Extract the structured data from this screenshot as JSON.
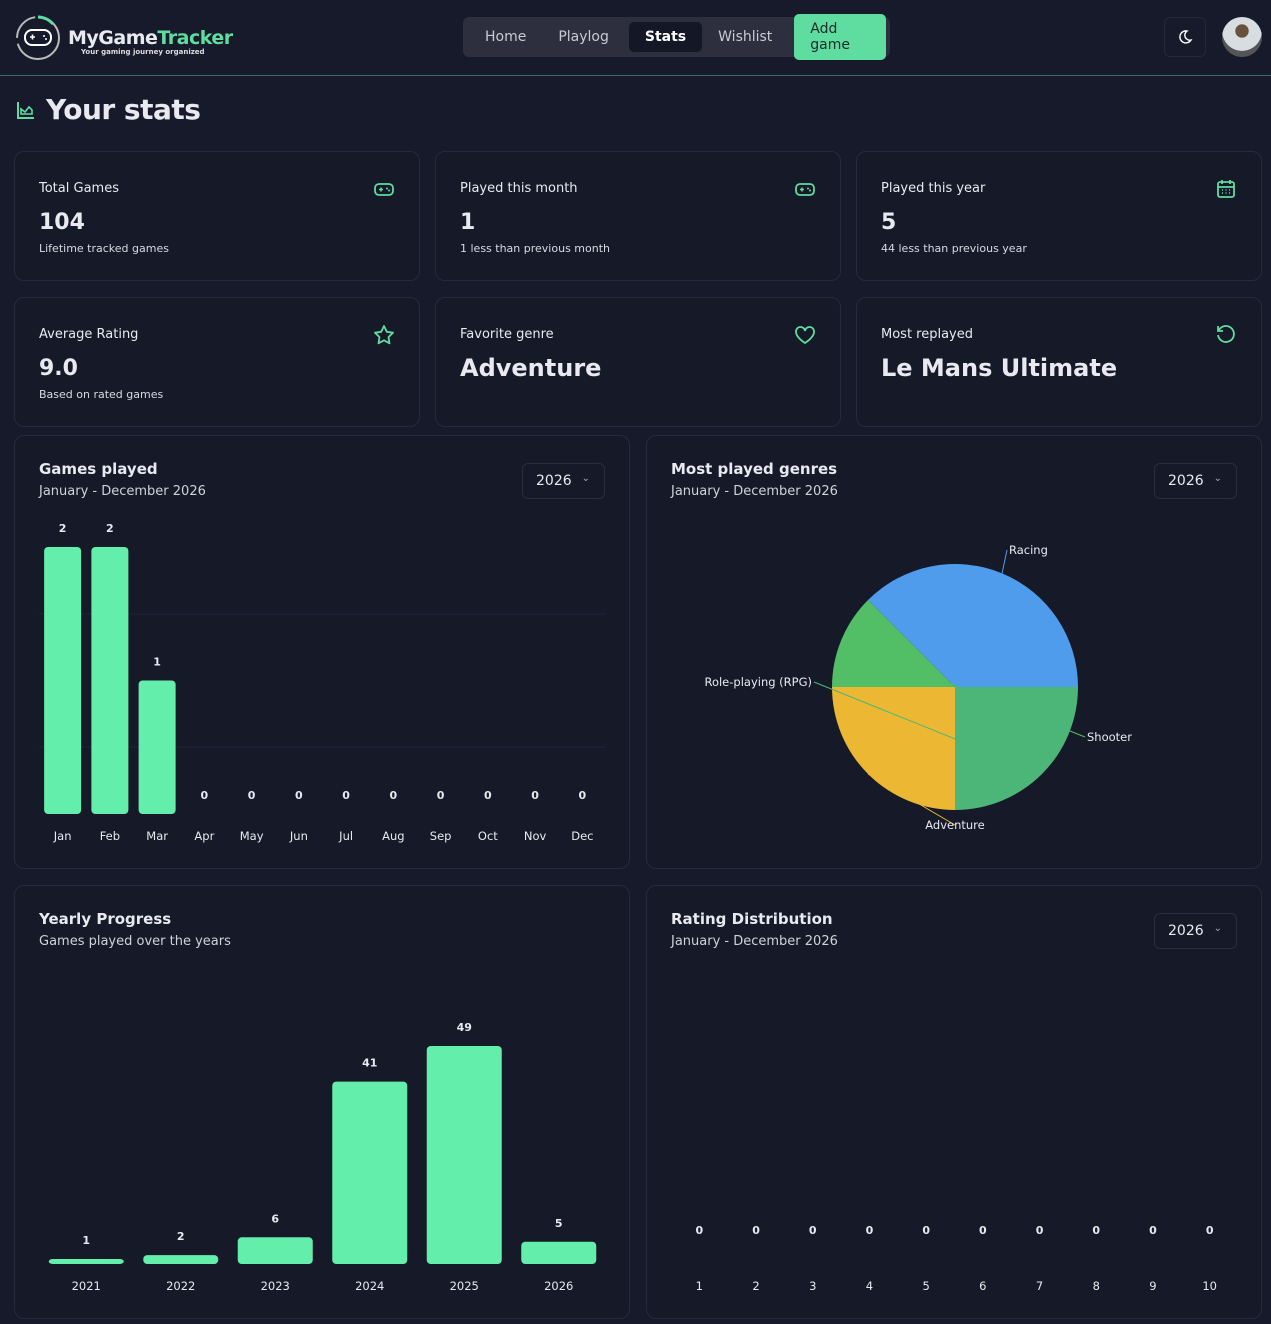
{
  "app": {
    "name_a": "MyGame",
    "name_b": "Tracker",
    "tagline": "Your gaming journey organized"
  },
  "nav": {
    "items": [
      "Home",
      "Playlog",
      "Stats",
      "Wishlist"
    ],
    "active": "Stats",
    "add": "Add game"
  },
  "page_title": "Your stats",
  "stats": [
    {
      "label": "Total Games",
      "value": "104",
      "sub": "Lifetime tracked games",
      "icon": "gamepad-icon"
    },
    {
      "label": "Played this month",
      "value": "1",
      "sub": "1 less than previous month",
      "icon": "gamepad-icon"
    },
    {
      "label": "Played this year",
      "value": "5",
      "sub": "44 less than previous year",
      "icon": "calendar-icon"
    },
    {
      "label": "Average Rating",
      "value": "9.0",
      "sub": "Based on rated games",
      "icon": "star-icon"
    },
    {
      "label": "Favorite genre",
      "value": "Adventure",
      "sub": "",
      "icon": "heart-icon"
    },
    {
      "label": "Most replayed",
      "value": "Le Mans Ultimate",
      "sub": "",
      "icon": "replay-icon"
    }
  ],
  "accent": "#5fdca0",
  "chart_data": [
    {
      "type": "bar",
      "title": "Games played",
      "subtitle": "January - December 2026",
      "year_select": "2026",
      "categories": [
        "Jan",
        "Feb",
        "Mar",
        "Apr",
        "May",
        "Jun",
        "Jul",
        "Aug",
        "Sep",
        "Oct",
        "Nov",
        "Dec"
      ],
      "values": [
        2,
        2,
        1,
        0,
        0,
        0,
        0,
        0,
        0,
        0,
        0,
        0
      ],
      "ylim": [
        0,
        2
      ]
    },
    {
      "type": "pie",
      "title": "Most played genres",
      "subtitle": "January - December 2026",
      "year_select": "2026",
      "categories": [
        "Racing",
        "Shooter",
        "Adventure",
        "Role-playing (RPG)"
      ],
      "values": [
        3,
        1,
        2,
        2
      ],
      "colors": [
        "#4f9cec",
        "#52bf66",
        "#ecb834",
        "#4cb679"
      ]
    },
    {
      "type": "bar",
      "title": "Yearly Progress",
      "subtitle": "Games played over the years",
      "categories": [
        "2021",
        "2022",
        "2023",
        "2024",
        "2025",
        "2026"
      ],
      "values": [
        1,
        2,
        6,
        41,
        49,
        5
      ],
      "ylim": [
        0,
        49
      ]
    },
    {
      "type": "bar",
      "title": "Rating Distribution",
      "subtitle": "January - December 2026",
      "year_select": "2026",
      "categories": [
        "1",
        "2",
        "3",
        "4",
        "5",
        "6",
        "7",
        "8",
        "9",
        "10"
      ],
      "values": [
        0,
        0,
        0,
        0,
        0,
        0,
        0,
        0,
        0,
        0
      ]
    }
  ]
}
